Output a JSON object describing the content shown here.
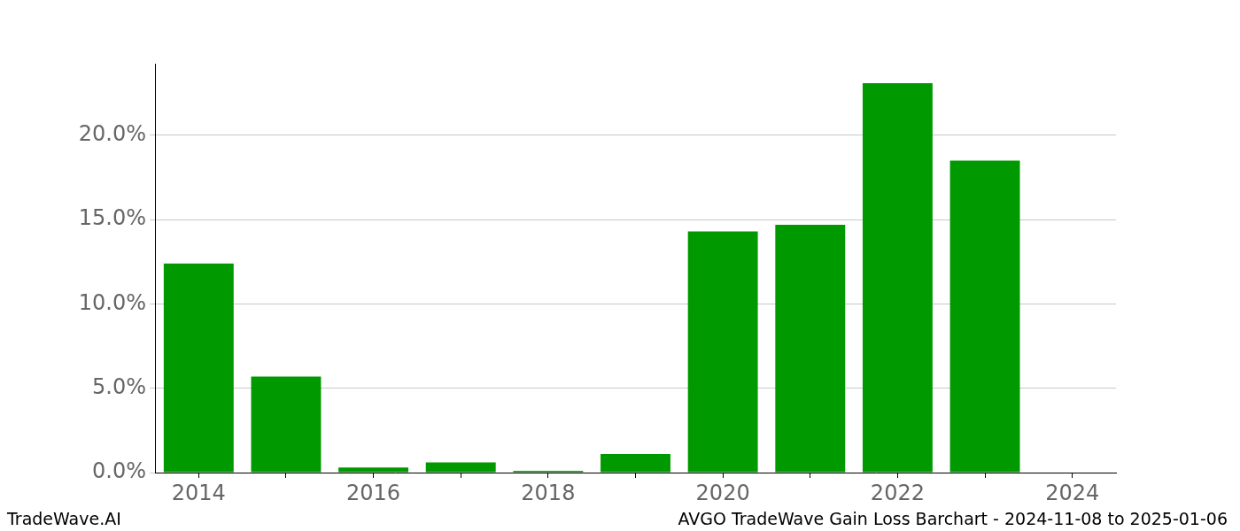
{
  "chart_data": {
    "type": "bar",
    "title": "AVGO TradeWave Gain Loss Barchart - 2024-11-08 to 2025-01-06",
    "annotations": [
      "TradeWave.AI"
    ],
    "categories": [
      "2014",
      null,
      "2016",
      null,
      "2018",
      null,
      "2020",
      null,
      "2022",
      null,
      "2024"
    ],
    "values": [
      12.4,
      5.7,
      0.3,
      0.6,
      0.1,
      1.1,
      14.3,
      14.7,
      23.1,
      18.5,
      0
    ],
    "color": "#009900",
    "ylim": [
      0,
      24.25
    ],
    "yticks": [
      {
        "value": 0,
        "label": "0.0%"
      },
      {
        "value": 5,
        "label": "5.0%"
      },
      {
        "value": 10,
        "label": "10.0%"
      },
      {
        "value": 15,
        "label": "15.0%"
      },
      {
        "value": 20,
        "label": "20.0%"
      }
    ],
    "grid": true
  }
}
